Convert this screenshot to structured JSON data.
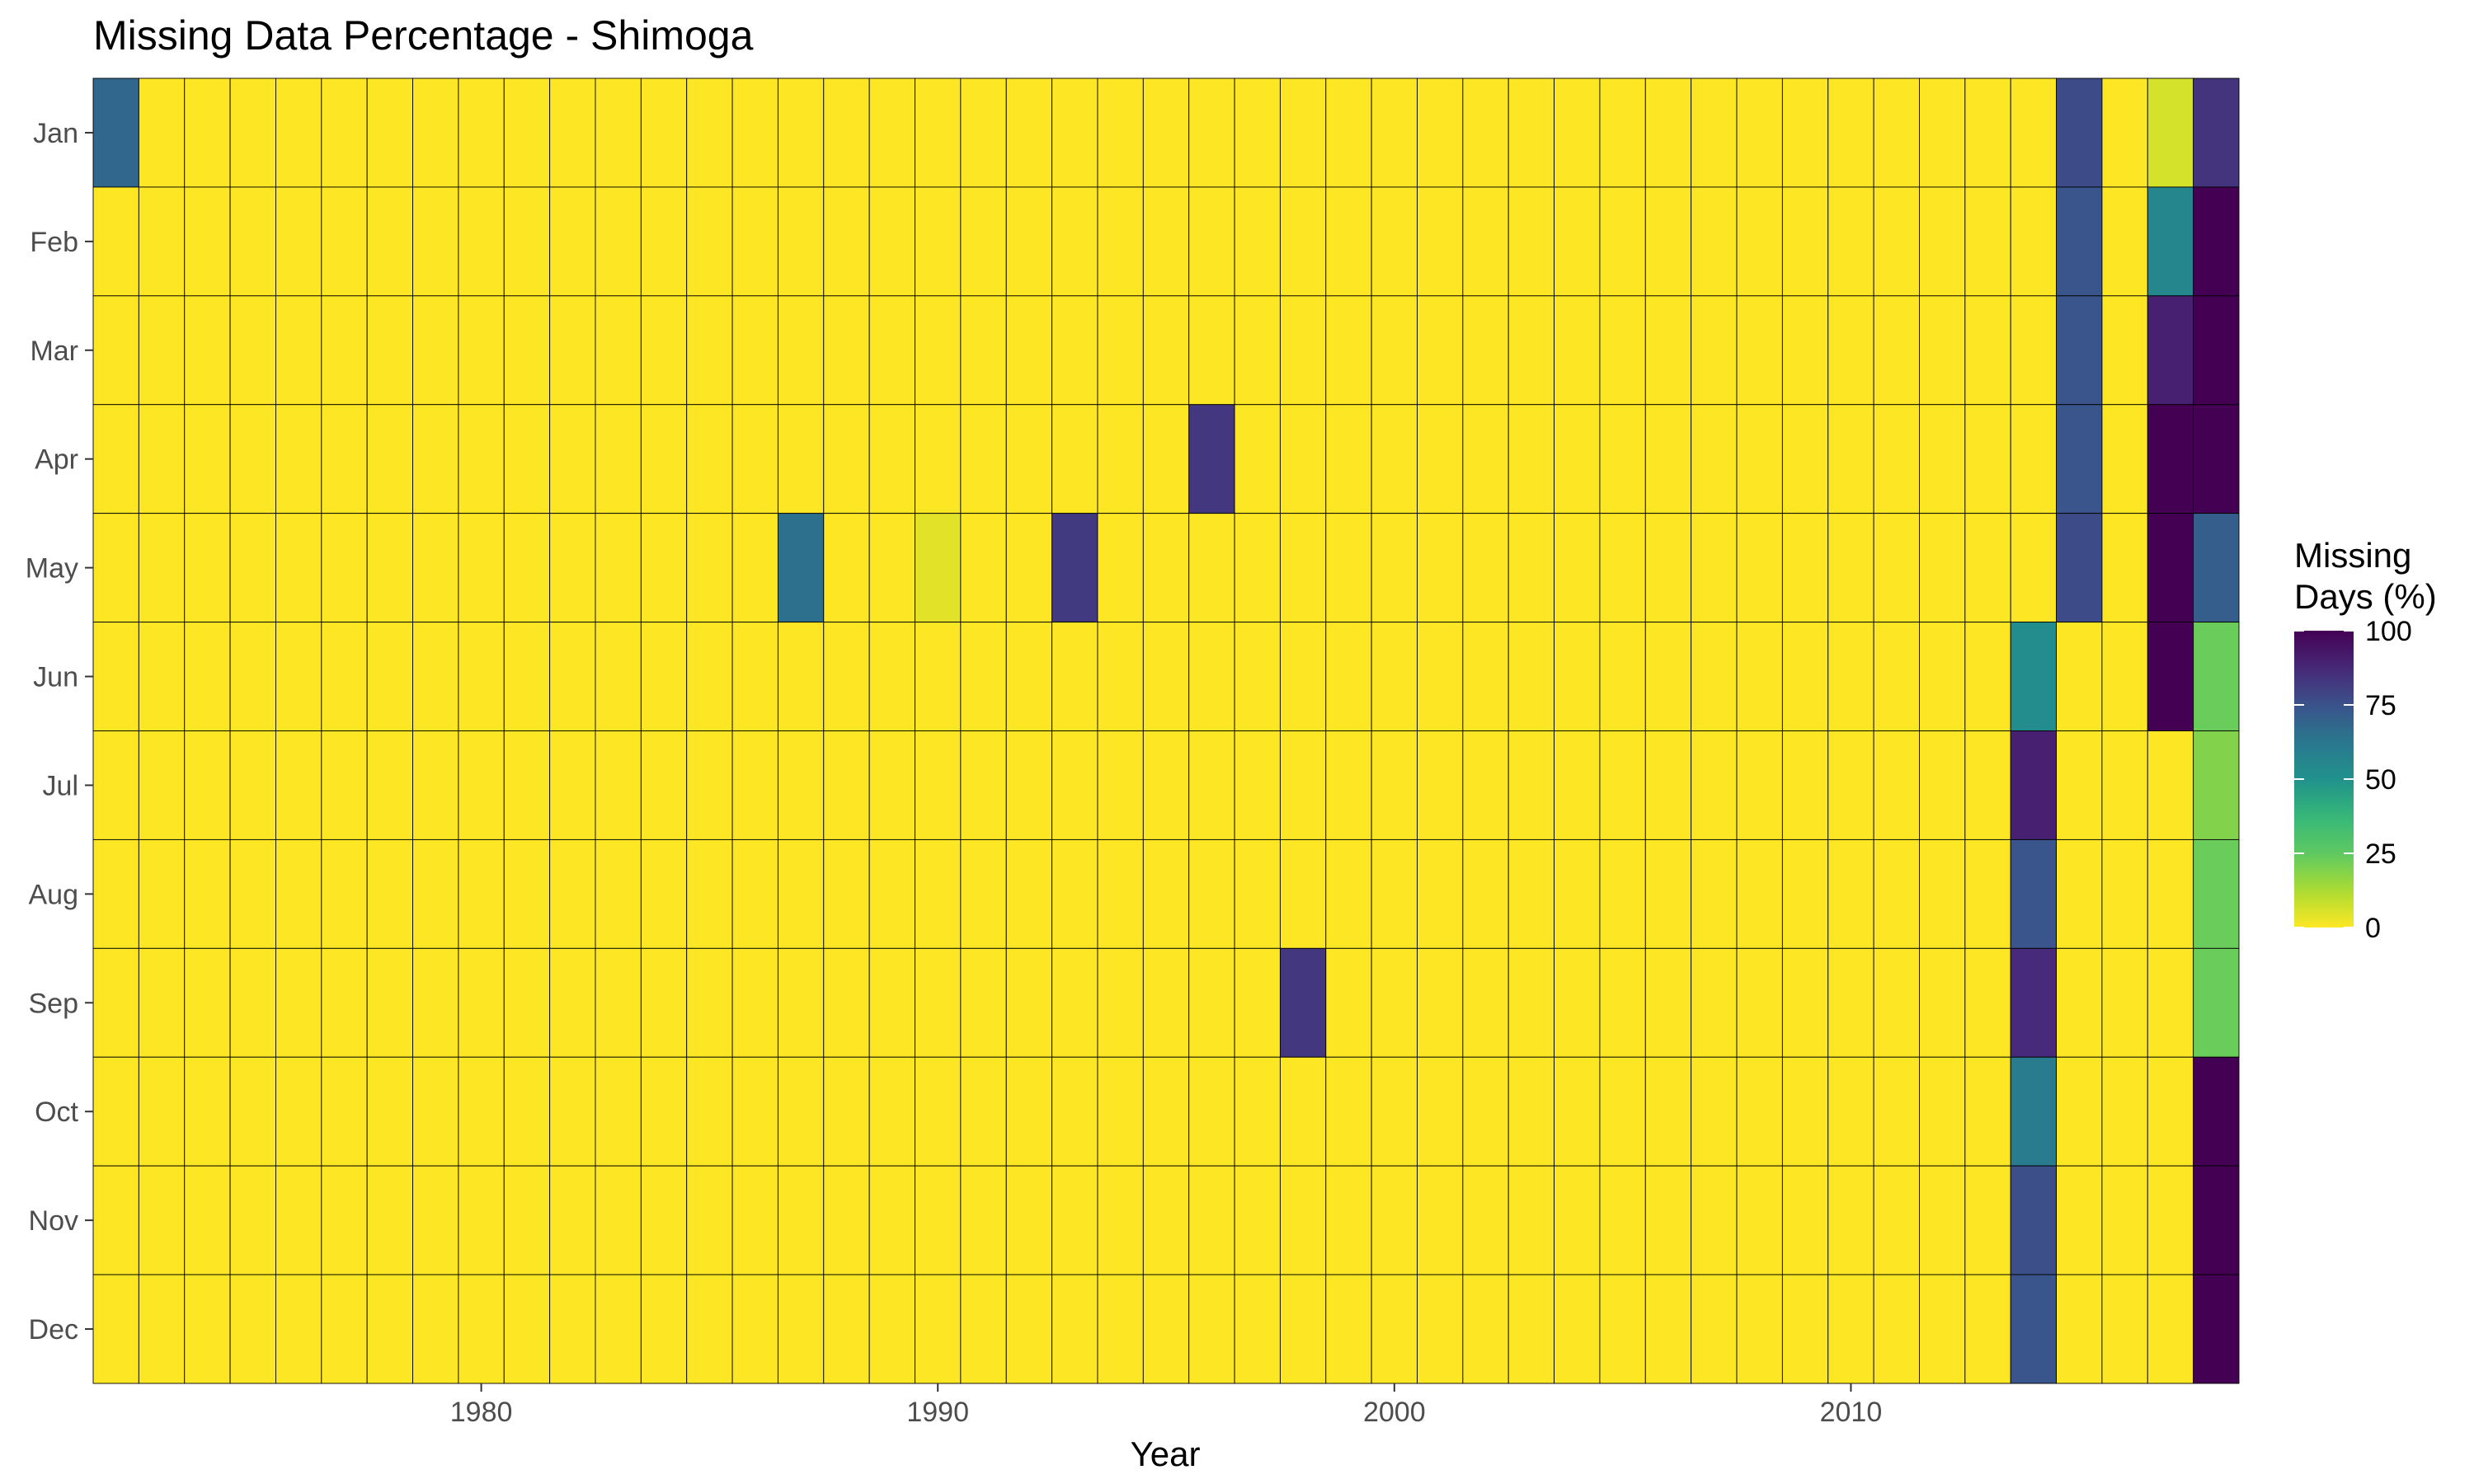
{
  "chart_data": {
    "type": "heatmap",
    "title": "Missing Data Percentage - Shimoga",
    "xlabel": "Year",
    "ylabel": "",
    "x_range": [
      1972,
      2018
    ],
    "x_ticks": [
      1980,
      1990,
      2000,
      2010
    ],
    "months": [
      "Jan",
      "Feb",
      "Mar",
      "Apr",
      "May",
      "Jun",
      "Jul",
      "Aug",
      "Sep",
      "Oct",
      "Nov",
      "Dec"
    ],
    "default_value": 0,
    "colorscale": "viridis (reversed: 0 = yellow, 100 = dark purple)",
    "legend": {
      "title_line1": "Missing",
      "title_line2": "Days (%)",
      "ticks": [
        0,
        25,
        50,
        75,
        100
      ],
      "position": "right"
    },
    "grid": false,
    "nonzero_cells": [
      {
        "year": 1972,
        "month": "Jan",
        "value": 68
      },
      {
        "year": 1987,
        "month": "May",
        "value": 65
      },
      {
        "year": 1990,
        "month": "May",
        "value": 4
      },
      {
        "year": 1993,
        "month": "May",
        "value": 82
      },
      {
        "year": 1996,
        "month": "Apr",
        "value": 83
      },
      {
        "year": 1998,
        "month": "Sep",
        "value": 83
      },
      {
        "year": 2014,
        "month": "Jun",
        "value": 52
      },
      {
        "year": 2014,
        "month": "Jul",
        "value": 90
      },
      {
        "year": 2014,
        "month": "Aug",
        "value": 74
      },
      {
        "year": 2014,
        "month": "Sep",
        "value": 87
      },
      {
        "year": 2014,
        "month": "Oct",
        "value": 61
      },
      {
        "year": 2014,
        "month": "Nov",
        "value": 76
      },
      {
        "year": 2014,
        "month": "Dec",
        "value": 74
      },
      {
        "year": 2015,
        "month": "Jan",
        "value": 77
      },
      {
        "year": 2015,
        "month": "Feb",
        "value": 74
      },
      {
        "year": 2015,
        "month": "Mar",
        "value": 74
      },
      {
        "year": 2015,
        "month": "Apr",
        "value": 74
      },
      {
        "year": 2015,
        "month": "May",
        "value": 77
      },
      {
        "year": 2017,
        "month": "Jan",
        "value": 6
      },
      {
        "year": 2017,
        "month": "Feb",
        "value": 55
      },
      {
        "year": 2017,
        "month": "Mar",
        "value": 90
      },
      {
        "year": 2017,
        "month": "Apr",
        "value": 100
      },
      {
        "year": 2017,
        "month": "May",
        "value": 100
      },
      {
        "year": 2017,
        "month": "Jun",
        "value": 100
      },
      {
        "year": 2018,
        "month": "Jan",
        "value": 84
      },
      {
        "year": 2018,
        "month": "Feb",
        "value": 100
      },
      {
        "year": 2018,
        "month": "Mar",
        "value": 100
      },
      {
        "year": 2018,
        "month": "Apr",
        "value": 100
      },
      {
        "year": 2018,
        "month": "May",
        "value": 71
      },
      {
        "year": 2018,
        "month": "Jun",
        "value": 23
      },
      {
        "year": 2018,
        "month": "Jul",
        "value": 19
      },
      {
        "year": 2018,
        "month": "Aug",
        "value": 23
      },
      {
        "year": 2018,
        "month": "Sep",
        "value": 23
      },
      {
        "year": 2018,
        "month": "Oct",
        "value": 100
      },
      {
        "year": 2018,
        "month": "Nov",
        "value": 100
      },
      {
        "year": 2018,
        "month": "Dec",
        "value": 100
      }
    ]
  }
}
